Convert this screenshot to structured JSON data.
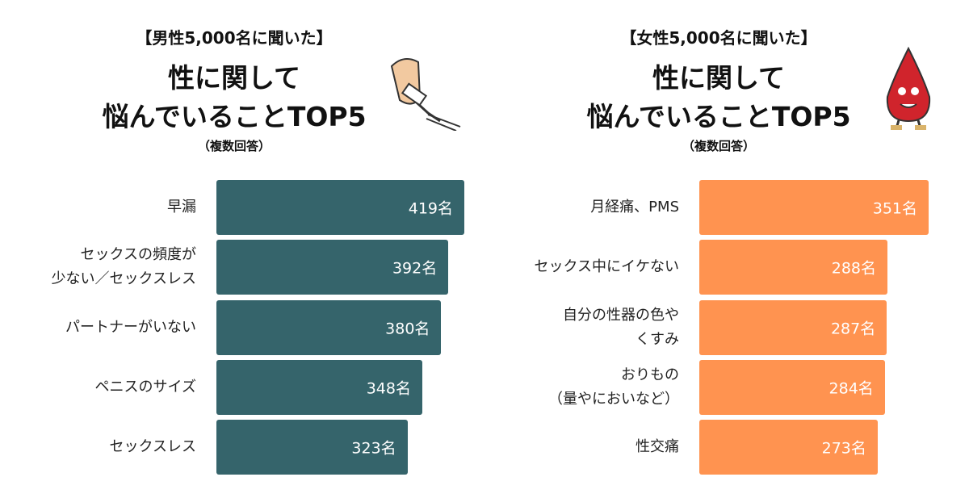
{
  "chart_data": [
    {
      "type": "bar",
      "orientation": "horizontal",
      "color": "#35646b",
      "kicker": "【男性5,000名に聞いた】",
      "title_lines": [
        "性に関して",
        "悩んでいることTOP5"
      ],
      "note": "（複数回答）",
      "categories": [
        "早漏",
        "セックスの頻度が\n少ない／セックスレス",
        "パートナーがいない",
        "ペニスのサイズ",
        "セックスレス"
      ],
      "values": [
        419,
        392,
        380,
        348,
        323
      ],
      "value_labels": [
        "419名",
        "392名",
        "380名",
        "348名",
        "323名"
      ]
    },
    {
      "type": "bar",
      "orientation": "horizontal",
      "color": "#ff9350",
      "kicker": "【女性5,000名に聞いた】",
      "title_lines": [
        "性に関して",
        "悩んでいることTOP5"
      ],
      "note": "（複数回答）",
      "categories": [
        "月経痛、PMS",
        "セックス中にイケない",
        "自分の性器の色や\nくすみ",
        "おりもの\n（量やにおいなど）",
        "性交痛"
      ],
      "values": [
        351,
        288,
        287,
        284,
        273
      ],
      "value_labels": [
        "351名",
        "288名",
        "287名",
        "284名",
        "273名"
      ]
    }
  ]
}
